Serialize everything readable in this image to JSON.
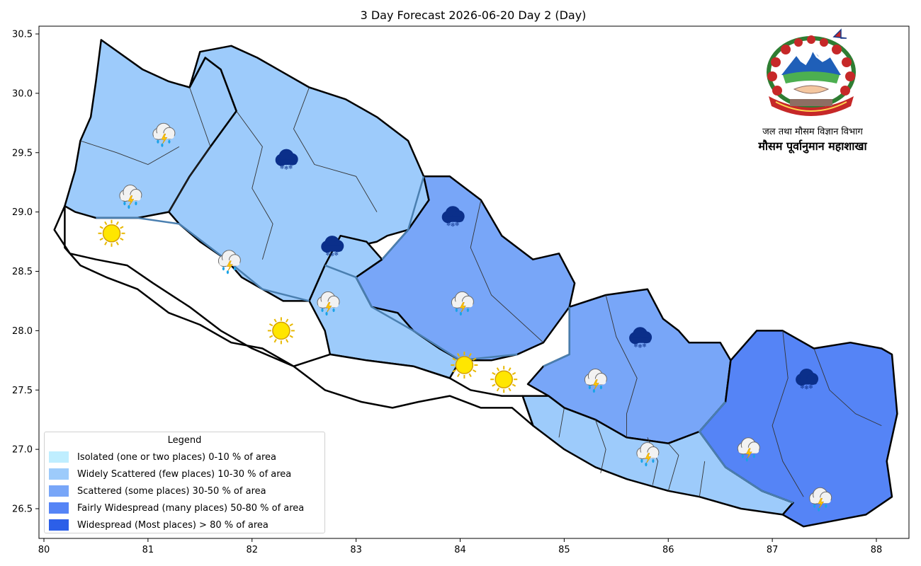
{
  "title": "3 Day Forecast 2026-06-20 Day 2 (Day)",
  "axes": {
    "x_ticks": [
      "80",
      "81",
      "82",
      "83",
      "84",
      "85",
      "86",
      "87",
      "88"
    ],
    "y_ticks": [
      "30.5",
      "30.0",
      "29.5",
      "29.0",
      "28.5",
      "28.0",
      "27.5",
      "27.0",
      "26.5"
    ],
    "x_range": [
      79.95,
      88.3
    ],
    "y_range": [
      26.25,
      30.6
    ]
  },
  "legend": {
    "title": "Legend",
    "items": [
      {
        "label": "Isolated (one or two places)  0-10 % of area",
        "color": "#bfeeff"
      },
      {
        "label": "Widely Scattered (few places)  10-30 % of area",
        "color": "#9dcbfb"
      },
      {
        "label": "Scattered (some places)  30-50 % of area",
        "color": "#78a6f8"
      },
      {
        "label": "Fairly Widespread (many places)  50-80 % of area",
        "color": "#5584f6"
      },
      {
        "label": "Widespread (Most places) > 80 % of area",
        "color": "#2c5fe8"
      }
    ]
  },
  "agency": {
    "line1": "जल तथा मौसम विज्ञान विभाग",
    "line2": "मौसम पूर्वानुमान महाशाखा",
    "logo": "nepal-emblem"
  },
  "map_data": {
    "regions": [
      {
        "id": "sudurpaschim-north",
        "coverage_class": "Widely Scattered",
        "color": "#9dcbfb",
        "outline": [
          [
            80.55,
            30.45
          ],
          [
            80.95,
            30.2
          ],
          [
            81.2,
            30.1
          ],
          [
            81.4,
            30.05
          ],
          [
            81.55,
            30.3
          ],
          [
            81.7,
            30.2
          ],
          [
            81.85,
            29.85
          ],
          [
            81.6,
            29.55
          ],
          [
            81.4,
            29.3
          ],
          [
            81.2,
            29.0
          ],
          [
            80.9,
            28.95
          ],
          [
            80.5,
            28.95
          ],
          [
            80.3,
            29.0
          ],
          [
            80.2,
            29.05
          ],
          [
            80.3,
            29.35
          ],
          [
            80.35,
            29.6
          ],
          [
            80.45,
            29.8
          ],
          [
            80.5,
            30.1
          ],
          [
            80.55,
            30.45
          ]
        ]
      },
      {
        "id": "karnali-north",
        "coverage_class": "Widely Scattered",
        "color": "#9dcbfb",
        "outline": [
          [
            81.4,
            30.05
          ],
          [
            81.5,
            30.35
          ],
          [
            81.8,
            30.4
          ],
          [
            82.05,
            30.3
          ],
          [
            82.25,
            30.2
          ],
          [
            82.55,
            30.05
          ],
          [
            82.9,
            29.95
          ],
          [
            83.2,
            29.8
          ],
          [
            83.5,
            29.6
          ],
          [
            83.65,
            29.3
          ],
          [
            83.7,
            29.1
          ],
          [
            83.5,
            28.85
          ],
          [
            83.3,
            28.8
          ],
          [
            83.2,
            28.75
          ],
          [
            82.95,
            28.7
          ],
          [
            82.8,
            28.6
          ],
          [
            82.7,
            28.55
          ],
          [
            82.55,
            28.25
          ],
          [
            82.3,
            28.25
          ],
          [
            82.1,
            28.35
          ],
          [
            81.9,
            28.45
          ],
          [
            81.75,
            28.6
          ],
          [
            81.5,
            28.75
          ],
          [
            81.3,
            28.9
          ],
          [
            81.2,
            29.0
          ],
          [
            81.4,
            29.3
          ],
          [
            81.6,
            29.55
          ],
          [
            81.85,
            29.85
          ],
          [
            81.7,
            30.2
          ],
          [
            81.55,
            30.3
          ],
          [
            81.4,
            30.05
          ]
        ]
      },
      {
        "id": "gandaki-west",
        "coverage_class": "Widely Scattered",
        "color": "#9dcbfb",
        "outline": [
          [
            82.7,
            28.55
          ],
          [
            82.85,
            28.8
          ],
          [
            83.1,
            28.75
          ],
          [
            83.25,
            28.6
          ],
          [
            83.0,
            28.45
          ],
          [
            83.15,
            28.2
          ],
          [
            83.4,
            28.15
          ],
          [
            83.55,
            28.0
          ],
          [
            83.8,
            27.85
          ],
          [
            84.0,
            27.75
          ],
          [
            83.9,
            27.6
          ],
          [
            83.55,
            27.7
          ],
          [
            83.1,
            27.75
          ],
          [
            82.75,
            27.8
          ],
          [
            82.7,
            28.0
          ],
          [
            82.55,
            28.25
          ],
          [
            82.7,
            28.55
          ]
        ]
      },
      {
        "id": "gandaki-east",
        "coverage_class": "Scattered",
        "color": "#78a6f8",
        "outline": [
          [
            83.0,
            28.45
          ],
          [
            83.25,
            28.6
          ],
          [
            83.5,
            28.85
          ],
          [
            83.7,
            29.1
          ],
          [
            83.65,
            29.3
          ],
          [
            83.9,
            29.3
          ],
          [
            84.2,
            29.1
          ],
          [
            84.4,
            28.8
          ],
          [
            84.7,
            28.6
          ],
          [
            84.95,
            28.65
          ],
          [
            85.1,
            28.4
          ],
          [
            85.05,
            28.2
          ],
          [
            84.8,
            27.9
          ],
          [
            84.55,
            27.8
          ],
          [
            84.3,
            27.75
          ],
          [
            84.0,
            27.75
          ],
          [
            83.8,
            27.85
          ],
          [
            83.55,
            28.0
          ],
          [
            83.4,
            28.15
          ],
          [
            83.15,
            28.2
          ],
          [
            83.0,
            28.45
          ]
        ]
      },
      {
        "id": "bagmati",
        "coverage_class": "Scattered",
        "color": "#78a6f8",
        "outline": [
          [
            84.8,
            27.7
          ],
          [
            85.05,
            27.8
          ],
          [
            85.05,
            28.2
          ],
          [
            85.4,
            28.3
          ],
          [
            85.8,
            28.35
          ],
          [
            85.95,
            28.1
          ],
          [
            86.1,
            28.0
          ],
          [
            86.2,
            27.9
          ],
          [
            86.5,
            27.9
          ],
          [
            86.6,
            27.75
          ],
          [
            86.55,
            27.4
          ],
          [
            86.3,
            27.15
          ],
          [
            86.0,
            27.05
          ],
          [
            85.6,
            27.1
          ],
          [
            85.3,
            27.25
          ],
          [
            85.0,
            27.35
          ],
          [
            84.85,
            27.45
          ],
          [
            84.65,
            27.55
          ],
          [
            84.8,
            27.7
          ]
        ]
      },
      {
        "id": "madhesh",
        "coverage_class": "Widely Scattered",
        "color": "#9dcbfb",
        "outline": [
          [
            84.6,
            27.45
          ],
          [
            84.85,
            27.45
          ],
          [
            85.0,
            27.35
          ],
          [
            85.3,
            27.25
          ],
          [
            85.6,
            27.1
          ],
          [
            86.0,
            27.05
          ],
          [
            86.3,
            27.15
          ],
          [
            86.55,
            26.85
          ],
          [
            86.9,
            26.65
          ],
          [
            87.2,
            26.55
          ],
          [
            87.1,
            26.45
          ],
          [
            86.7,
            26.5
          ],
          [
            86.3,
            26.6
          ],
          [
            86.0,
            26.65
          ],
          [
            85.6,
            26.75
          ],
          [
            85.3,
            26.85
          ],
          [
            85.0,
            27.0
          ],
          [
            84.7,
            27.2
          ],
          [
            84.6,
            27.45
          ]
        ]
      },
      {
        "id": "koshi",
        "coverage_class": "Fairly Widespread",
        "color": "#5584f6",
        "outline": [
          [
            86.55,
            27.4
          ],
          [
            86.6,
            27.75
          ],
          [
            86.85,
            28.0
          ],
          [
            87.1,
            28.0
          ],
          [
            87.4,
            27.85
          ],
          [
            87.75,
            27.9
          ],
          [
            88.05,
            27.85
          ],
          [
            88.15,
            27.8
          ],
          [
            88.2,
            27.3
          ],
          [
            88.1,
            26.9
          ],
          [
            88.15,
            26.6
          ],
          [
            87.9,
            26.45
          ],
          [
            87.6,
            26.4
          ],
          [
            87.3,
            26.35
          ],
          [
            87.1,
            26.45
          ],
          [
            87.2,
            26.55
          ],
          [
            86.9,
            26.65
          ],
          [
            86.55,
            26.85
          ],
          [
            86.3,
            27.15
          ],
          [
            86.55,
            27.4
          ]
        ]
      },
      {
        "id": "lumbini-south",
        "coverage_class": "Isolated / none",
        "color": "#ffffff",
        "outline": [
          [
            80.2,
            29.05
          ],
          [
            80.1,
            28.85
          ],
          [
            80.25,
            28.65
          ],
          [
            80.5,
            28.6
          ],
          [
            80.8,
            28.55
          ],
          [
            81.05,
            28.4
          ],
          [
            81.4,
            28.2
          ],
          [
            81.7,
            28.0
          ],
          [
            82.0,
            27.85
          ],
          [
            82.4,
            27.7
          ],
          [
            82.75,
            27.8
          ],
          [
            83.1,
            27.75
          ],
          [
            83.55,
            27.7
          ],
          [
            83.9,
            27.6
          ],
          [
            84.1,
            27.5
          ],
          [
            84.4,
            27.45
          ],
          [
            84.6,
            27.45
          ],
          [
            84.7,
            27.2
          ],
          [
            84.5,
            27.35
          ],
          [
            84.2,
            27.35
          ],
          [
            83.9,
            27.45
          ],
          [
            83.6,
            27.4
          ],
          [
            83.35,
            27.35
          ],
          [
            83.05,
            27.4
          ],
          [
            82.7,
            27.5
          ],
          [
            82.4,
            27.7
          ],
          [
            82.1,
            27.85
          ],
          [
            81.8,
            27.9
          ],
          [
            81.5,
            28.05
          ],
          [
            81.2,
            28.15
          ],
          [
            80.9,
            28.35
          ],
          [
            80.6,
            28.45
          ],
          [
            80.35,
            28.55
          ],
          [
            80.2,
            28.7
          ],
          [
            80.2,
            29.05
          ]
        ]
      }
    ],
    "borders": [
      [
        [
          80.5,
          28.95
        ],
        [
          80.9,
          28.95
        ],
        [
          81.3,
          28.9
        ],
        [
          81.75,
          28.6
        ],
        [
          82.1,
          28.35
        ],
        [
          82.55,
          28.25
        ]
      ],
      [
        [
          82.7,
          28.55
        ],
        [
          83.0,
          28.45
        ],
        [
          83.15,
          28.2
        ],
        [
          83.55,
          28.0
        ],
        [
          84.0,
          27.75
        ],
        [
          84.55,
          27.8
        ]
      ],
      [
        [
          83.65,
          29.3
        ],
        [
          83.5,
          28.85
        ],
        [
          83.25,
          28.6
        ]
      ],
      [
        [
          85.05,
          28.2
        ],
        [
          85.05,
          27.8
        ],
        [
          84.8,
          27.7
        ]
      ],
      [
        [
          86.55,
          27.4
        ],
        [
          86.3,
          27.15
        ],
        [
          86.55,
          26.85
        ],
        [
          86.9,
          26.65
        ],
        [
          87.2,
          26.55
        ]
      ],
      [
        [
          81.4,
          30.05
        ],
        [
          81.6,
          29.55
        ],
        [
          81.4,
          29.3
        ],
        [
          81.2,
          29.0
        ]
      ],
      [
        [
          82.55,
          30.05
        ],
        [
          82.4,
          29.7
        ],
        [
          82.6,
          29.4
        ],
        [
          83.0,
          29.3
        ],
        [
          83.2,
          29.0
        ]
      ],
      [
        [
          84.2,
          29.1
        ],
        [
          84.1,
          28.7
        ],
        [
          84.3,
          28.3
        ],
        [
          84.55,
          28.1
        ],
        [
          84.8,
          27.9
        ]
      ],
      [
        [
          85.4,
          28.3
        ],
        [
          85.5,
          27.95
        ],
        [
          85.7,
          27.6
        ],
        [
          85.6,
          27.3
        ],
        [
          85.6,
          27.1
        ]
      ],
      [
        [
          87.1,
          28.0
        ],
        [
          87.15,
          27.6
        ],
        [
          87.0,
          27.2
        ],
        [
          87.1,
          26.9
        ],
        [
          87.3,
          26.6
        ]
      ],
      [
        [
          87.4,
          27.85
        ],
        [
          87.55,
          27.5
        ],
        [
          87.8,
          27.3
        ],
        [
          88.05,
          27.2
        ]
      ],
      [
        [
          81.85,
          29.85
        ],
        [
          82.1,
          29.55
        ],
        [
          82.0,
          29.2
        ],
        [
          82.2,
          28.9
        ],
        [
          82.1,
          28.6
        ]
      ],
      [
        [
          80.35,
          29.6
        ],
        [
          80.7,
          29.5
        ],
        [
          81.0,
          29.4
        ],
        [
          81.3,
          29.55
        ]
      ],
      [
        [
          85.3,
          27.25
        ],
        [
          85.4,
          27.0
        ],
        [
          85.35,
          26.8
        ]
      ],
      [
        [
          85.0,
          27.35
        ],
        [
          84.95,
          27.1
        ]
      ],
      [
        [
          85.8,
          27.1
        ],
        [
          85.9,
          26.9
        ],
        [
          85.85,
          26.7
        ]
      ],
      [
        [
          86.0,
          26.65
        ],
        [
          86.1,
          26.95
        ],
        [
          86.0,
          27.05
        ]
      ],
      [
        [
          86.3,
          26.6
        ],
        [
          86.35,
          26.9
        ]
      ]
    ],
    "weather_icons": [
      {
        "type": "thunderstorm-rain",
        "lon": 81.15,
        "lat": 29.67
      },
      {
        "type": "snow",
        "lon": 82.33,
        "lat": 29.45
      },
      {
        "type": "thunderstorm-rain",
        "lon": 80.83,
        "lat": 29.15
      },
      {
        "type": "sunny",
        "lon": 80.65,
        "lat": 28.82
      },
      {
        "type": "thunderstorm-rain",
        "lon": 81.78,
        "lat": 28.6
      },
      {
        "type": "snow",
        "lon": 82.77,
        "lat": 28.72
      },
      {
        "type": "snow",
        "lon": 83.93,
        "lat": 28.97
      },
      {
        "type": "thunderstorm-rain",
        "lon": 82.73,
        "lat": 28.25
      },
      {
        "type": "sunny",
        "lon": 82.28,
        "lat": 28.0
      },
      {
        "type": "thunderstorm-rain",
        "lon": 84.02,
        "lat": 28.25
      },
      {
        "type": "sunny",
        "lon": 84.04,
        "lat": 27.71
      },
      {
        "type": "sunny",
        "lon": 84.42,
        "lat": 27.59
      },
      {
        "type": "thunderstorm-rain",
        "lon": 85.3,
        "lat": 27.6
      },
      {
        "type": "snow",
        "lon": 85.73,
        "lat": 27.95
      },
      {
        "type": "thunderstorm-rain",
        "lon": 85.8,
        "lat": 26.98
      },
      {
        "type": "snow",
        "lon": 87.33,
        "lat": 27.6
      },
      {
        "type": "thunderstorm-rain",
        "lon": 86.77,
        "lat": 27.02
      },
      {
        "type": "thunderstorm-rain",
        "lon": 87.46,
        "lat": 26.6
      }
    ]
  }
}
